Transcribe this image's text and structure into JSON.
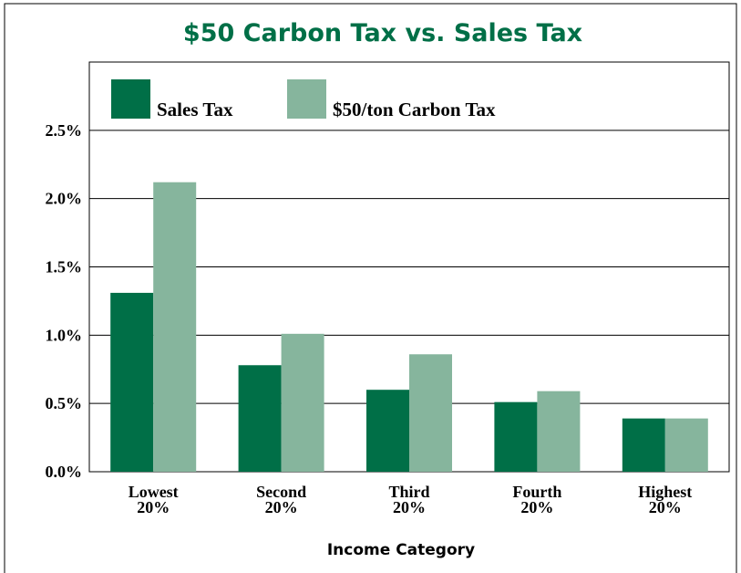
{
  "chart_data": {
    "type": "bar",
    "title": "$50 Carbon Tax vs. Sales Tax",
    "x_label": "Income Category",
    "categories": [
      "Lowest\n20%",
      "Second\n20%",
      "Third\n20%",
      "Fourth\n20%",
      "Highest\n20%"
    ],
    "series": [
      {
        "name": "Sales Tax",
        "color": "#006f47",
        "values": [
          1.31,
          0.78,
          0.6,
          0.51,
          0.39
        ]
      },
      {
        "name": "$50/ton Carbon Tax",
        "color": "#86b59d",
        "values": [
          2.12,
          1.01,
          0.86,
          0.59,
          0.39
        ]
      }
    ],
    "ylim": [
      0,
      3
    ],
    "yticks": [
      {
        "value": 0,
        "label": "0.0%"
      },
      {
        "value": 0.5,
        "label": "0.5%"
      },
      {
        "value": 1,
        "label": "1.0%"
      },
      {
        "value": 1.5,
        "label": "1.5%"
      },
      {
        "value": 2,
        "label": "2.0%"
      },
      {
        "value": 2.5,
        "label": "2.5%"
      }
    ],
    "grid": true,
    "legend": "top-left"
  }
}
